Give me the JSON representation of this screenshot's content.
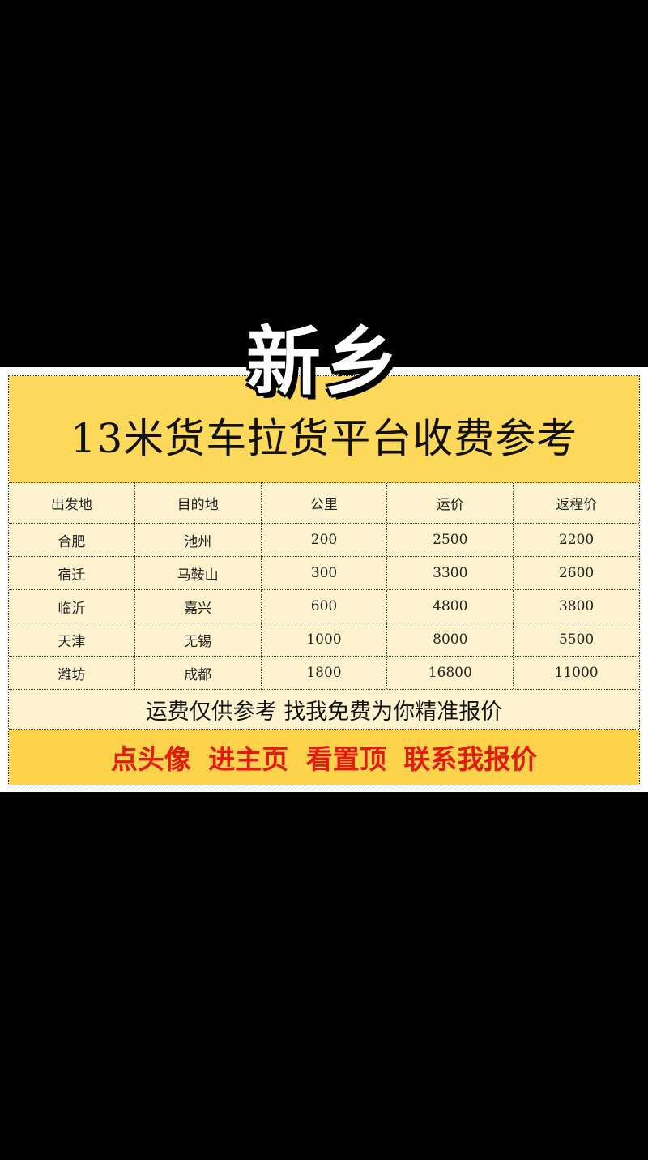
{
  "city": "新乡",
  "title": "13米货车拉货平台收费参考",
  "table": {
    "headers": [
      "出发地",
      "目的地",
      "公里",
      "运价",
      "返程价"
    ],
    "rows": [
      [
        "合肥",
        "池州",
        "200",
        "2500",
        "2200"
      ],
      [
        "宿迁",
        "马鞍山",
        "300",
        "3300",
        "2600"
      ],
      [
        "临沂",
        "嘉兴",
        "600",
        "4800",
        "3800"
      ],
      [
        "天津",
        "无锡",
        "1000",
        "8000",
        "5500"
      ],
      [
        "潍坊",
        "成都",
        "1800",
        "16800",
        "11000"
      ]
    ]
  },
  "note": "运费仅供参考  找我免费为你精准报价",
  "cta": "点头像 进主页 看置顶 联系我报价",
  "colors": {
    "title_bg": "#fcd95a",
    "row_bg": "#fff3cf",
    "cta_text": "#e01b10",
    "background": "#000000"
  }
}
